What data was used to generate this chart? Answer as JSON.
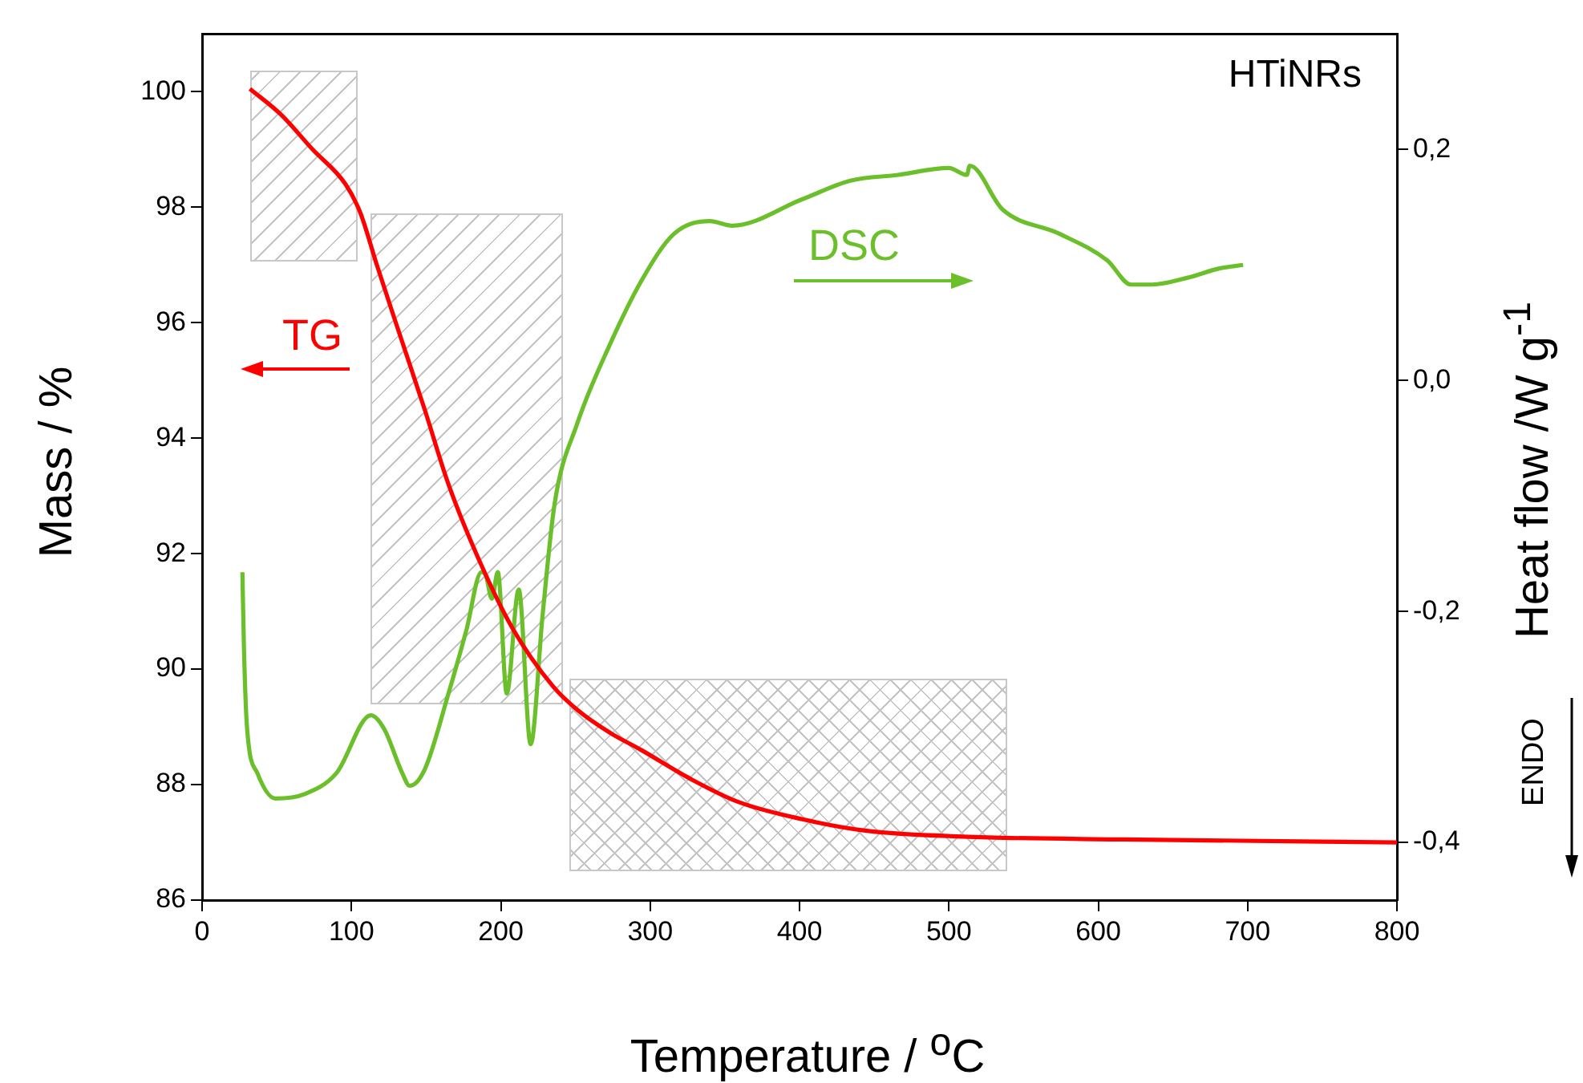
{
  "chart_data": {
    "type": "line",
    "title": "HTiNRs",
    "xlabel": "Temperature / $^{o}$C",
    "ylabel": "Mass / %",
    "y2label": "Heat flow /W g$^{-1}$",
    "annotations": [
      "TG",
      "DSC",
      "ENDO"
    ],
    "xlim": [
      0,
      800
    ],
    "xticks": [
      0,
      100,
      200,
      300,
      400,
      500,
      600,
      700,
      800
    ],
    "ylim": [
      86,
      101
    ],
    "yticks": [
      86,
      88,
      90,
      92,
      94,
      96,
      98,
      100
    ],
    "y2lim": [
      -0.45,
      0.3
    ],
    "y2ticks": [
      {
        "value": -0.4,
        "label": "-0,4"
      },
      {
        "value": -0.2,
        "label": "-0,2"
      },
      {
        "value": 0,
        "label": "0,0"
      },
      {
        "value": 0.2,
        "label": "0,2"
      }
    ],
    "grid": false,
    "legend": false,
    "marker": "none",
    "line_style": "solid",
    "series": [
      {
        "color": "#ff0000",
        "x": [
          32,
          53,
          74,
          96,
          106,
          117,
          131,
          149,
          165,
          187,
          208,
          235,
          251,
          273,
          294,
          327,
          359,
          402,
          445,
          509,
          617,
          800
        ],
        "values": [
          100.05,
          99.6,
          99.0,
          98.4,
          97.9,
          97.0,
          95.9,
          94.5,
          93.2,
          91.8,
          90.7,
          89.7,
          89.3,
          88.9,
          88.6,
          88.1,
          87.7,
          87.4,
          87.2,
          87.1,
          87.05,
          87.0
        ]
      },
      {
        "color": "#6abf2a",
        "axis": "y2",
        "x": [
          27,
          28,
          30,
          37,
          49,
          69,
          90,
          113,
          122,
          134,
          139,
          149,
          165,
          177,
          187,
          190,
          194,
          198,
          204,
          212,
          220,
          228,
          236,
          251,
          273,
          294,
          316,
          340,
          355,
          402,
          434,
          466,
          500,
          512,
          514,
          536,
          574,
          606,
          622,
          636,
          660,
          681,
          697
        ],
        "values": [
          -0.166,
          -0.23,
          -0.299,
          -0.34,
          -0.362,
          -0.358,
          -0.34,
          -0.29,
          -0.302,
          -0.34,
          -0.351,
          -0.337,
          -0.271,
          -0.216,
          -0.166,
          -0.169,
          -0.189,
          -0.166,
          -0.271,
          -0.181,
          -0.315,
          -0.203,
          -0.107,
          -0.038,
          0.031,
          0.086,
          0.127,
          0.138,
          0.134,
          0.157,
          0.173,
          0.178,
          0.184,
          0.178,
          0.186,
          0.148,
          0.127,
          0.104,
          0.083,
          0.083,
          0.089,
          0.097,
          0.1
        ]
      }
    ]
  }
}
